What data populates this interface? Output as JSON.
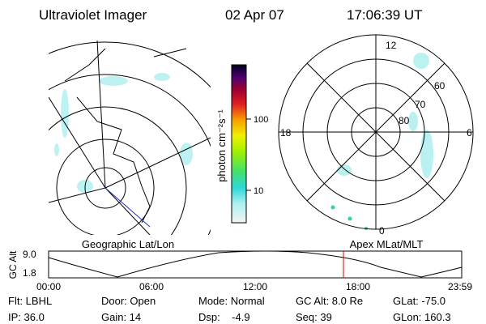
{
  "header": {
    "title": "Ultraviolet Imager",
    "date": "02 Apr 07",
    "time": "17:06:39 UT"
  },
  "map": {
    "label": "Geographic Lat/Lon"
  },
  "colorbar": {
    "label": "photon cm⁻²s⁻¹",
    "ticks": [
      "100",
      "10"
    ]
  },
  "polar": {
    "label": "Apex MLat/MLT",
    "hours": [
      "12",
      "18",
      "6",
      "0"
    ],
    "latitudes": [
      "60",
      "70",
      "80"
    ]
  },
  "orbit": {
    "y_label": "GC Alt",
    "y_ticks": [
      "9.0",
      "1.8"
    ],
    "x_ticks": [
      "00:00",
      "06:00",
      "12:00",
      "18:00",
      "23:59"
    ]
  },
  "footer": {
    "rows": [
      [
        "Flt: LBHL",
        "Door: Open",
        "Mode: Normal",
        "GC Alt: 8.0 Re",
        "GLat: -75.0"
      ],
      [
        "IP: 36.0",
        "Gain: 14",
        "Dsp:    -4.9",
        "Seq: 39",
        "GLon: 160.3"
      ]
    ]
  }
}
